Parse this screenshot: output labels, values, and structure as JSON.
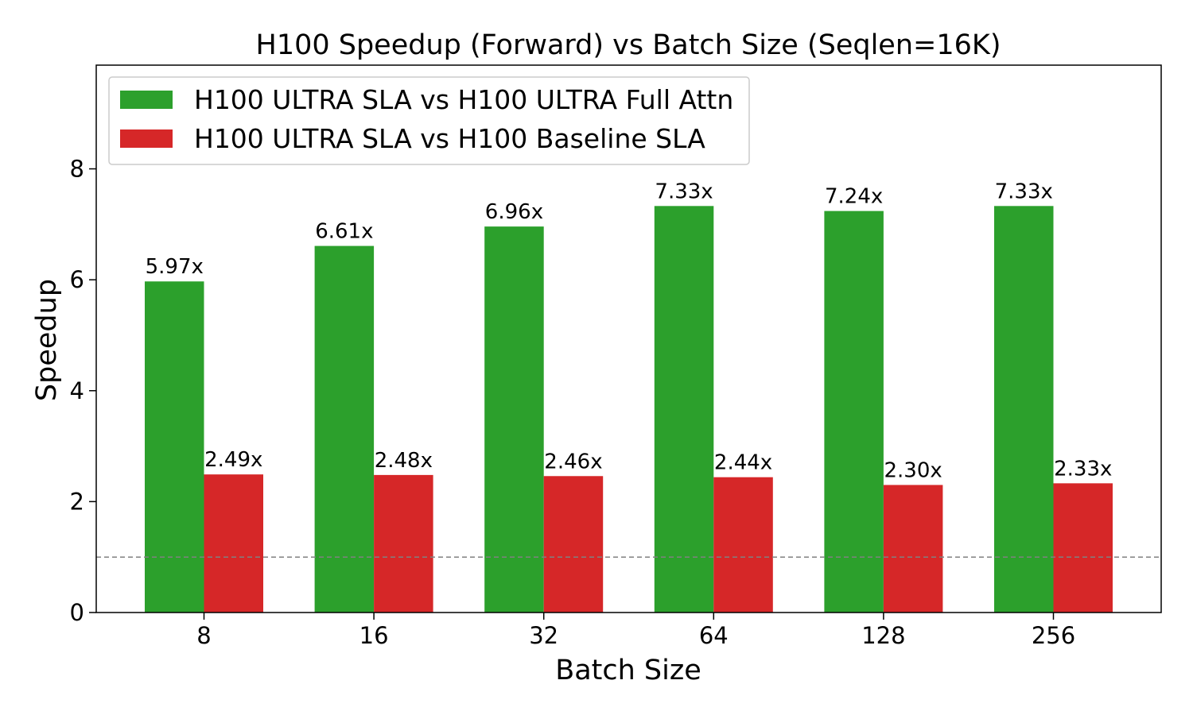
{
  "chart_data": {
    "type": "bar",
    "title": "H100 Speedup (Forward) vs Batch Size (Seqlen=16K)",
    "xlabel": "Batch Size",
    "ylabel": "Speedup",
    "categories": [
      "8",
      "16",
      "32",
      "64",
      "128",
      "256"
    ],
    "ylim": [
      0,
      9.87
    ],
    "yticks": [
      0,
      2,
      4,
      6,
      8
    ],
    "reference_line": {
      "y": 1.0,
      "style": "dashed",
      "color": "#808080"
    },
    "grid": false,
    "legend_position": "top-left",
    "series": [
      {
        "name": "H100 ULTRA SLA vs H100 ULTRA Full Attn",
        "color": "#2ca02c",
        "values": [
          5.97,
          6.61,
          6.96,
          7.33,
          7.24,
          7.33
        ],
        "labels": [
          "5.97x",
          "6.61x",
          "6.96x",
          "7.33x",
          "7.24x",
          "7.33x"
        ]
      },
      {
        "name": "H100 ULTRA SLA vs H100 Baseline SLA",
        "color": "#d62728",
        "values": [
          2.49,
          2.48,
          2.46,
          2.44,
          2.3,
          2.33
        ],
        "labels": [
          "2.49x",
          "2.48x",
          "2.46x",
          "2.44x",
          "2.30x",
          "2.33x"
        ]
      }
    ]
  }
}
